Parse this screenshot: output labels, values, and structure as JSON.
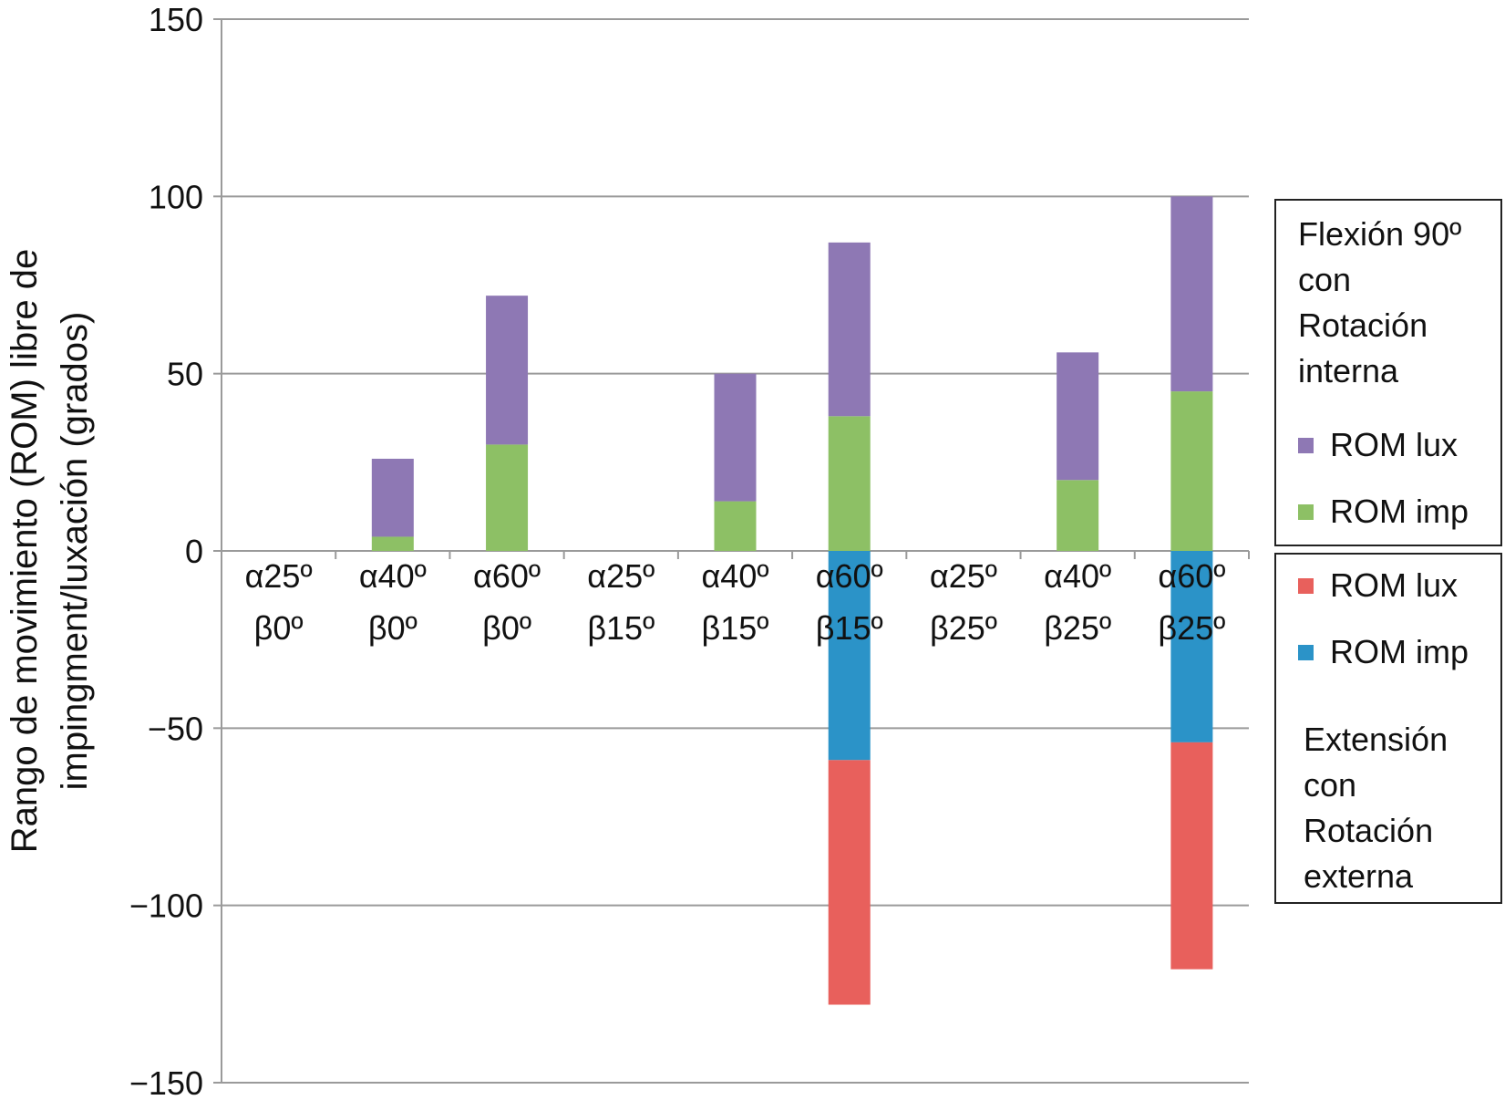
{
  "chart_data": {
    "type": "bar",
    "stacked": true,
    "ylabel": "Rango de movimiento (ROM) libre de impingment/luxación (grados)",
    "ylabel_lines": [
      "Rango de movimiento (ROM) libre de",
      "impingment/luxación (grados)"
    ],
    "xlabel": "",
    "ylim": [
      -150,
      150
    ],
    "yticks": [
      150,
      100,
      50,
      0,
      -50,
      -100,
      -150
    ],
    "ytick_labels": [
      "150",
      "100",
      "50",
      "0",
      "−50",
      "−100",
      "−150"
    ],
    "grid": true,
    "categories": [
      [
        "α25º",
        "β0º"
      ],
      [
        "α40º",
        "β0º"
      ],
      [
        "α60º",
        "β0º"
      ],
      [
        "α25º",
        "β15º"
      ],
      [
        "α40º",
        "β15º"
      ],
      [
        "α60º",
        "β15º"
      ],
      [
        "α25º",
        "β25º"
      ],
      [
        "α40º",
        "β25º"
      ],
      [
        "α60º",
        "β25º"
      ]
    ],
    "series": [
      {
        "group": "flexion",
        "name": "ROM imp",
        "color": "#8dc065",
        "values": [
          0,
          4,
          30,
          0,
          14,
          38,
          0,
          20,
          45
        ]
      },
      {
        "group": "flexion",
        "name": "ROM lux",
        "color": "#8e78b4",
        "values": [
          0,
          22,
          42,
          0,
          36,
          49,
          0,
          36,
          55
        ]
      },
      {
        "group": "extension",
        "name": "ROM imp",
        "color": "#2b93c8",
        "values": [
          0,
          0,
          0,
          0,
          0,
          -59,
          0,
          0,
          -54
        ]
      },
      {
        "group": "extension",
        "name": "ROM lux",
        "color": "#e8605c",
        "values": [
          0,
          0,
          0,
          0,
          0,
          -69,
          0,
          0,
          -64
        ]
      }
    ],
    "legend": {
      "placement": "right",
      "flexion": {
        "title_lines": [
          "Flexión 90º",
          "con",
          "Rotación",
          "interna"
        ],
        "items": [
          {
            "label": "ROM lux",
            "color": "#8e78b4"
          },
          {
            "label": "ROM imp",
            "color": "#8dc065"
          }
        ]
      },
      "extension": {
        "title_lines": [
          "Extensión",
          "con",
          "Rotación",
          "externa"
        ],
        "items": [
          {
            "label": "ROM lux",
            "color": "#e8605c"
          },
          {
            "label": "ROM imp",
            "color": "#2b93c8"
          }
        ]
      }
    }
  }
}
